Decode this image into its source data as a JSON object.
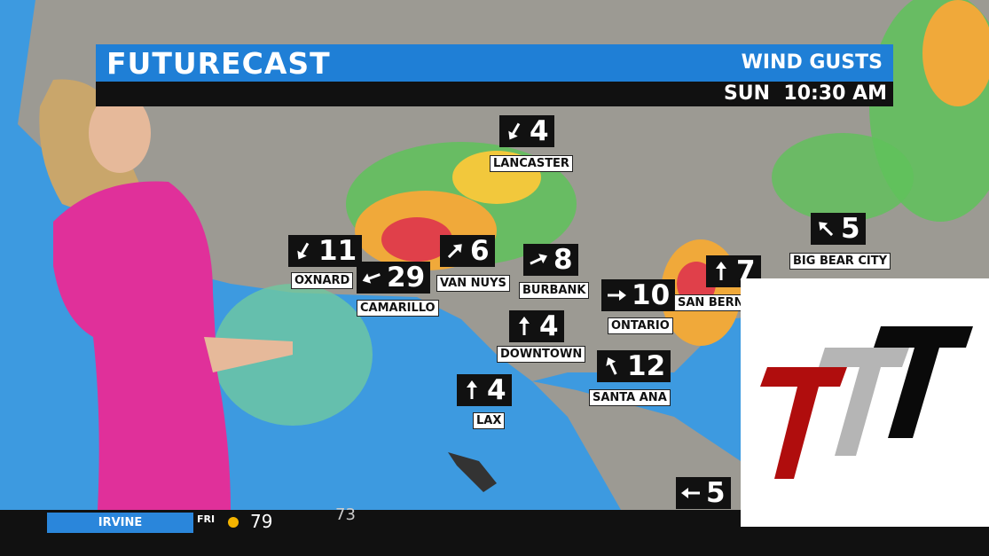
{
  "header": {
    "title": "FUTURECAST",
    "subtitle": "WIND GUSTS",
    "time": "SUN  10:30 AM"
  },
  "stations": [
    {
      "name": "LANCASTER",
      "gust": 4
    },
    {
      "name": "OXNARD",
      "gust": 11
    },
    {
      "name": "CAMARILLO",
      "gust": 29
    },
    {
      "name": "VAN NUYS",
      "gust": 6
    },
    {
      "name": "BURBANK",
      "gust": 8
    },
    {
      "name": "ONTARIO",
      "gust": 10
    },
    {
      "name": "SAN BERN",
      "gust": 7
    },
    {
      "name": "BIG BEAR CITY",
      "gust": 5
    },
    {
      "name": "DOWNTOWN",
      "gust": 4
    },
    {
      "name": "SANTA ANA",
      "gust": 12
    },
    {
      "name": "LAX",
      "gust": 4
    },
    {
      "gust": 5
    }
  ],
  "ticker": {
    "city": "IRVINE",
    "day": "FRI",
    "temp": 79,
    "next_temp": 73
  }
}
